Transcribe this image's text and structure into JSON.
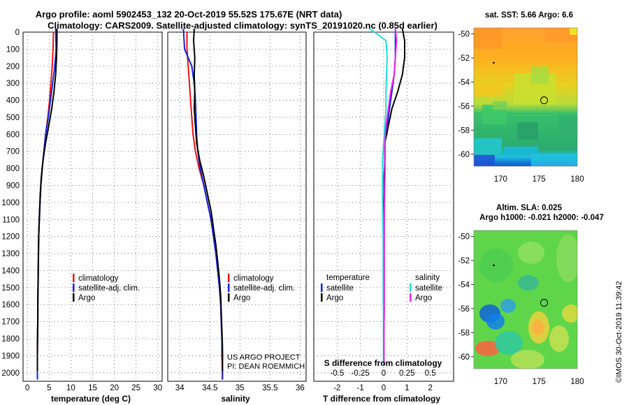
{
  "header": {
    "line1": "Argo profile: aoml 5902453_132 20-Oct-2019 55.52S 175.67E (NRT data)",
    "line2": "Climatology: CARS2009. Satellite-adjusted climatology: synTS_20191020.nc (0.85d earlier)"
  },
  "credits": {
    "project": "US ARGO PROJECT",
    "pi": "PI: DEAN ROEMMICH",
    "stamp": "©IMOS 30-Oct-2019 11:39:42"
  },
  "colors": {
    "climatology": "#ee1111",
    "satellite": "#1122dd",
    "argo": "#000000",
    "sat_salinity": "#22dddd",
    "argo_salinity": "#ee22ee",
    "circle": "#000000"
  },
  "chart_data": [
    {
      "type": "line",
      "id": "temperature",
      "xlabel": "temperature (deg C)",
      "ylabel": "",
      "xlim": [
        -1,
        31
      ],
      "ylim": [
        2050,
        0
      ],
      "xticks": [
        0,
        5,
        10,
        15,
        20,
        25,
        30
      ],
      "yticks": [
        0,
        100,
        200,
        300,
        400,
        500,
        600,
        700,
        800,
        900,
        1000,
        1100,
        1200,
        1300,
        1400,
        1500,
        1600,
        1700,
        1800,
        1900,
        2000
      ],
      "series": [
        {
          "name": "climatology",
          "color_key": "climatology",
          "x": [
            6.0,
            5.9,
            5.7,
            5.4,
            5.1,
            4.7,
            4.2,
            3.8,
            3.4,
            3.1,
            2.9,
            2.75,
            2.6,
            2.55,
            2.5,
            2.45,
            2.4,
            2.4,
            2.35,
            2.3,
            2.3,
            2.3
          ],
          "y": [
            0,
            100,
            200,
            300,
            400,
            500,
            600,
            700,
            800,
            900,
            1000,
            1100,
            1200,
            1300,
            1400,
            1500,
            1600,
            1700,
            1800,
            1900,
            2000,
            2040
          ]
        },
        {
          "name": "satellite-adj. clim.",
          "color_key": "satellite",
          "x": [
            6.5,
            6.6,
            6.3,
            5.8,
            5.3,
            4.8,
            4.2,
            3.8,
            3.4,
            3.1,
            2.9,
            2.75,
            2.6,
            2.55,
            2.5,
            2.45,
            2.4,
            2.4,
            2.35,
            2.3,
            2.3,
            2.3
          ],
          "y": [
            -20,
            100,
            200,
            300,
            400,
            500,
            600,
            700,
            800,
            900,
            1000,
            1100,
            1200,
            1300,
            1400,
            1500,
            1600,
            1700,
            1800,
            1900,
            2000,
            2040
          ]
        },
        {
          "name": "Argo",
          "color_key": "argo",
          "x": [
            6.8,
            6.8,
            6.7,
            6.5,
            6.1,
            5.6,
            4.9,
            4.2,
            3.6,
            3.2,
            2.95,
            2.8,
            2.65,
            2.55,
            2.5,
            2.45,
            2.4,
            2.4,
            2.35,
            2.3,
            2.3,
            2.3
          ],
          "y": [
            -20,
            50,
            150,
            250,
            350,
            450,
            550,
            650,
            750,
            850,
            950,
            1050,
            1150,
            1250,
            1350,
            1450,
            1550,
            1650,
            1750,
            1850,
            1950,
            1990
          ]
        }
      ],
      "legend": {
        "position": "lower-right",
        "entries": [
          "climatology",
          "satellite-adj. clim.",
          "Argo"
        ]
      }
    },
    {
      "type": "line",
      "id": "salinity",
      "xlabel": "salinity",
      "ylabel": "",
      "xlim": [
        33.8,
        36.1
      ],
      "ylim": [
        2050,
        0
      ],
      "xticks": [
        34,
        34.5,
        35,
        35.5,
        36
      ],
      "series": [
        {
          "name": "climatology",
          "color_key": "climatology",
          "x": [
            34.12,
            34.12,
            34.14,
            34.16,
            34.18,
            34.2,
            34.22,
            34.26,
            34.32,
            34.4,
            34.46,
            34.52,
            34.56,
            34.6,
            34.63,
            34.66,
            34.68,
            34.69,
            34.7,
            34.7,
            34.71,
            34.71
          ],
          "y": [
            0,
            100,
            200,
            300,
            400,
            500,
            600,
            700,
            800,
            900,
            1000,
            1100,
            1200,
            1300,
            1400,
            1500,
            1600,
            1700,
            1800,
            1900,
            2000,
            2040
          ]
        },
        {
          "name": "satellite-adj. clim.",
          "color_key": "satellite",
          "x": [
            34.06,
            34.08,
            34.2,
            34.24,
            34.26,
            34.27,
            34.28,
            34.3,
            34.34,
            34.4,
            34.46,
            34.52,
            34.56,
            34.6,
            34.63,
            34.66,
            34.68,
            34.69,
            34.7,
            34.71,
            34.71,
            34.71
          ],
          "y": [
            -20,
            100,
            200,
            300,
            400,
            500,
            600,
            700,
            800,
            900,
            1000,
            1100,
            1200,
            1300,
            1400,
            1500,
            1600,
            1700,
            1800,
            1900,
            2000,
            2040
          ]
        },
        {
          "name": "Argo",
          "color_key": "argo",
          "x": [
            34.24,
            34.23,
            34.25,
            34.24,
            34.25,
            34.24,
            34.26,
            34.28,
            34.33,
            34.4,
            34.46,
            34.52,
            34.56,
            34.6,
            34.63,
            34.66,
            34.68,
            34.69,
            34.7,
            34.71,
            34.71,
            34.71
          ],
          "y": [
            -20,
            50,
            150,
            250,
            350,
            450,
            550,
            650,
            750,
            850,
            950,
            1050,
            1150,
            1250,
            1350,
            1450,
            1550,
            1650,
            1750,
            1850,
            1950,
            1990
          ]
        }
      ],
      "legend": {
        "position": "lower-right",
        "entries": [
          "climatology",
          "satellite-adj. clim.",
          "Argo"
        ]
      }
    },
    {
      "type": "line",
      "id": "difference",
      "xlabel": "T difference from climatology",
      "xlabel_top": "S difference from climatology",
      "xlim": [
        -3,
        3
      ],
      "ylim": [
        2050,
        0
      ],
      "xticks": [
        -2,
        -1,
        0,
        1,
        2
      ],
      "xticks_top": {
        "positions": [
          -2,
          -1,
          0,
          1,
          2
        ],
        "labels": [
          "-0.5",
          "-0.25",
          "0",
          "0.25",
          "0.5"
        ]
      },
      "series": [
        {
          "name": "temperature satellite",
          "color_key": "satellite",
          "x": [
            0.5,
            0.5,
            0.5,
            0.45,
            0.35,
            0.25,
            0.15,
            0.05,
            0.05,
            0.05,
            0.03,
            0.02,
            0.02,
            0.02,
            0.02,
            0.02,
            0.02,
            0.02,
            0.01,
            0.01,
            0.01
          ],
          "y": [
            -20,
            50,
            150,
            250,
            350,
            450,
            550,
            650,
            750,
            850,
            950,
            1050,
            1150,
            1250,
            1350,
            1450,
            1550,
            1650,
            1750,
            1850,
            1950
          ]
        },
        {
          "name": "temperature Argo",
          "color_key": "argo",
          "x": [
            0.8,
            0.9,
            0.9,
            0.8,
            0.6,
            0.35,
            0.2,
            0.05,
            0.05,
            0.02,
            0.02,
            0.01,
            0.0,
            0.0,
            0.0,
            0.0,
            0.0,
            0.0,
            0.0,
            0.0,
            0.0
          ],
          "y": [
            -20,
            50,
            150,
            250,
            350,
            450,
            550,
            650,
            750,
            850,
            950,
            1050,
            1150,
            1250,
            1350,
            1450,
            1550,
            1650,
            1750,
            1850,
            1950
          ]
        },
        {
          "name": "salinity satellite",
          "color_key": "sat_salinity",
          "x": [
            -0.6,
            0.1,
            0.15,
            0.12,
            0.1,
            0.1,
            0.05,
            0.0,
            -0.05,
            -0.05,
            -0.05,
            -0.04,
            -0.03,
            -0.02,
            -0.02,
            -0.02,
            -0.02,
            -0.01,
            -0.01,
            -0.01,
            -0.01
          ],
          "y": [
            -20,
            50,
            150,
            250,
            350,
            450,
            550,
            650,
            750,
            850,
            950,
            1050,
            1150,
            1250,
            1350,
            1450,
            1550,
            1650,
            1750,
            1850,
            1950
          ]
        },
        {
          "name": "salinity Argo",
          "color_key": "argo_salinity",
          "x": [
            0.5,
            0.55,
            0.5,
            0.45,
            0.3,
            0.2,
            0.1,
            0.05,
            0.05,
            0.05,
            0.04,
            0.03,
            0.02,
            0.02,
            0.02,
            0.02,
            0.02,
            0.02,
            0.01,
            0.01,
            0.01
          ],
          "y": [
            -20,
            50,
            150,
            250,
            350,
            450,
            550,
            650,
            750,
            850,
            950,
            1050,
            1150,
            1250,
            1350,
            1450,
            1550,
            1650,
            1750,
            1850,
            1950
          ]
        }
      ],
      "legend": {
        "temperature_heading": "temperature",
        "salinity_heading": "salinity",
        "temperature_entries": [
          "satellite",
          "Argo"
        ],
        "salinity_entries": [
          "satellite",
          "Argo"
        ]
      }
    },
    {
      "type": "heatmap",
      "id": "sst_map",
      "title": "sat. SST: 5.66 Argo: 6.6",
      "xlim": [
        166.5,
        180
      ],
      "ylim": [
        -61,
        -49.5
      ],
      "xticks": [
        170,
        175,
        180
      ],
      "yticks": [
        -50,
        -52,
        -54,
        -56,
        -58,
        -60
      ],
      "float_position": {
        "lon": 175.67,
        "lat": -55.52
      },
      "marker_position": {
        "lon": 169.1,
        "lat": -52.4
      }
    },
    {
      "type": "heatmap",
      "id": "sla_map",
      "title": "Altim. SLA: 0.025",
      "subtitle": "Argo h1000: -0.021 h2000: -0.047",
      "xlim": [
        166.5,
        180
      ],
      "ylim": [
        -61,
        -49.5
      ],
      "xticks": [
        170,
        175,
        180
      ],
      "yticks": [
        -50,
        -52,
        -54,
        -56,
        -58,
        -60
      ],
      "float_position": {
        "lon": 175.67,
        "lat": -55.52
      },
      "marker_position": {
        "lon": 169.1,
        "lat": -52.4
      }
    }
  ]
}
